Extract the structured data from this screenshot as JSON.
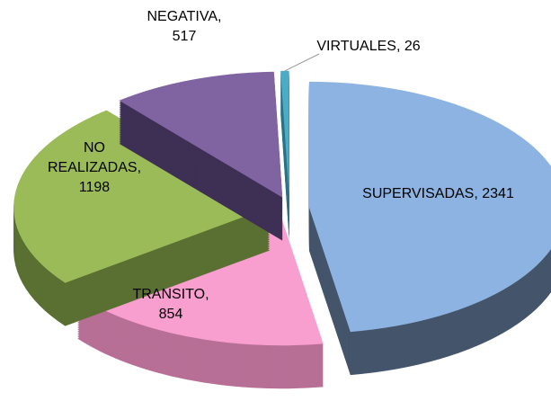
{
  "chart_data": {
    "type": "pie",
    "values": [
      2341,
      854,
      1198,
      517,
      26
    ],
    "value_labels": [
      "SUPERVISADAS, 2341",
      "TRANSITO, 854",
      "NO REALIZADAS, 1198",
      "NEGATIVA, 517",
      "VIRTUALES, 26"
    ],
    "colors": [
      "#8db3e2",
      "#f99fcf",
      "#9bbb59",
      "#8064a2",
      "#4bacc6"
    ],
    "side_colors": [
      "#44556b",
      "#b76f96",
      "#5a7032",
      "#3e2f55",
      "#2b7487"
    ]
  }
}
